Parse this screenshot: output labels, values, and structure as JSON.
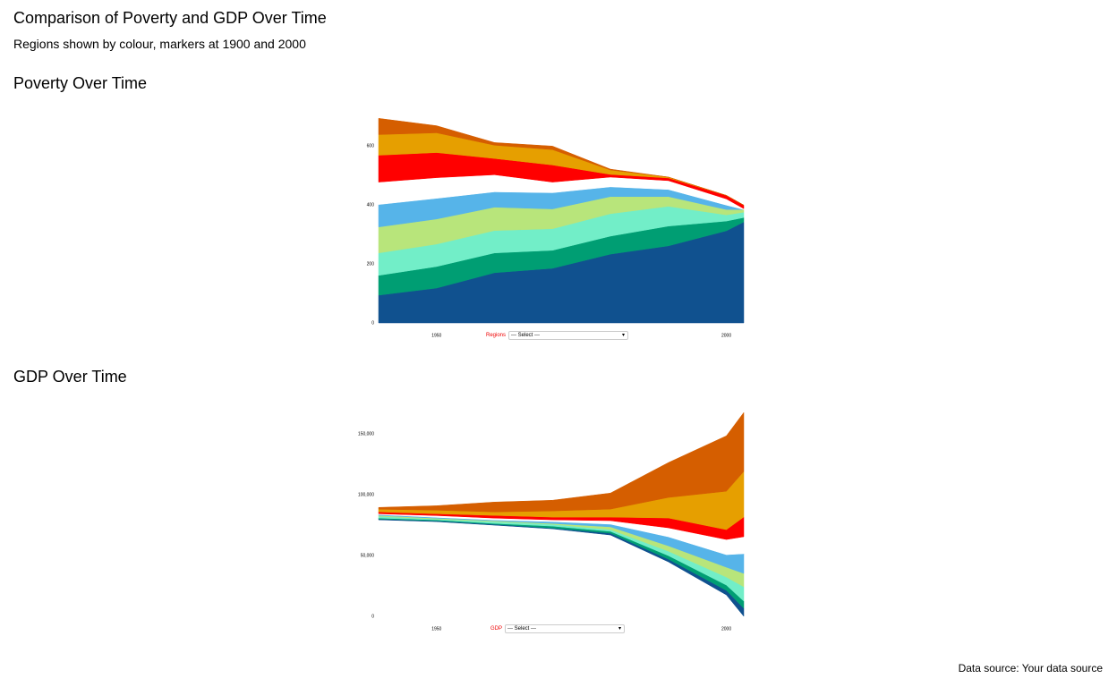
{
  "title": "Comparison of Poverty and GDP Over Time",
  "subtitle": "Regions shown by colour, markers at 1900 and 2000",
  "source": "Data source: Your data source",
  "chart_data": [
    {
      "type": "area",
      "title": "Poverty Over Time",
      "stacked": true,
      "select_label": "Regions",
      "select_placeholder": "--- Select ---",
      "x": [
        1940,
        1950,
        1960,
        1970,
        1980,
        1990,
        2000,
        2003
      ],
      "xlim": [
        1940,
        2003
      ],
      "xticks": [
        1950,
        2000
      ],
      "ylim": [
        0,
        700
      ],
      "yticks": [
        0,
        200,
        400,
        600
      ],
      "series": [
        {
          "color": "#10518f",
          "values": [
            94,
            118,
            170,
            185,
            233,
            261,
            312,
            342
          ]
        },
        {
          "color": "#009e73",
          "values": [
            67,
            73,
            67,
            61,
            61,
            67,
            33,
            15
          ]
        },
        {
          "color": "#72eec8",
          "values": [
            76,
            76,
            76,
            73,
            76,
            67,
            21,
            18
          ]
        },
        {
          "color": "#b8e57b",
          "values": [
            88,
            85,
            79,
            67,
            58,
            33,
            18,
            9
          ]
        },
        {
          "color": "#56b4e9",
          "values": [
            76,
            70,
            52,
            55,
            33,
            24,
            15,
            0
          ]
        },
        {
          "color": "#ffffff",
          "values": [
            76,
            70,
            58,
            36,
            33,
            30,
            21,
            3
          ]
        },
        {
          "color": "#ff0000",
          "values": [
            91,
            85,
            55,
            58,
            9,
            9,
            12,
            12
          ]
        },
        {
          "color": "#e69f00",
          "values": [
            70,
            67,
            45,
            52,
            15,
            3,
            0,
            0
          ]
        },
        {
          "color": "#d55e00",
          "values": [
            55,
            24,
            9,
            12,
            3,
            0,
            0,
            0
          ]
        }
      ]
    },
    {
      "type": "area",
      "title": "GDP Over Time",
      "stacked": true,
      "select_label": "GDP",
      "select_placeholder": "--- Select ---",
      "x": [
        1940,
        1950,
        1960,
        1970,
        1980,
        1990,
        2000,
        2003
      ],
      "xlim": [
        1940,
        2003
      ],
      "xticks": [
        1950,
        2000
      ],
      "ylim": [
        0,
        170000
      ],
      "yticks": [
        0,
        {
          "value": 50000,
          "label": "50,000"
        },
        {
          "value": 100000,
          "label": "100,000"
        },
        {
          "value": 150000,
          "label": "150,000"
        }
      ],
      "series": [
        {
          "color": "#ffffff",
          "values": [
            79400,
            77900,
            75000,
            72000,
            66900,
            44800,
            17600,
            0
          ]
        },
        {
          "color": "#10518f",
          "values": [
            700,
            700,
            700,
            700,
            1500,
            2200,
            3700,
            6600
          ]
        },
        {
          "color": "#009e73",
          "values": [
            700,
            700,
            700,
            1500,
            1500,
            2900,
            4400,
            5900
          ]
        },
        {
          "color": "#72eec8",
          "values": [
            1500,
            700,
            1500,
            1500,
            1500,
            3700,
            6600,
            11800
          ]
        },
        {
          "color": "#b8e57b",
          "values": [
            700,
            700,
            700,
            700,
            2200,
            4400,
            8100,
            11000
          ]
        },
        {
          "color": "#56b4e9",
          "values": [
            700,
            700,
            700,
            1500,
            2200,
            7400,
            10300,
            16200
          ]
        },
        {
          "color": "#ffffff",
          "values": [
            700,
            1500,
            1500,
            1500,
            2900,
            7400,
            12500,
            14000
          ]
        },
        {
          "color": "#ff0000",
          "values": [
            1500,
            1500,
            2200,
            2200,
            2900,
            8100,
            8100,
            16200
          ]
        },
        {
          "color": "#e69f00",
          "values": [
            2200,
            2900,
            2900,
            5100,
            6600,
            16900,
            31600,
            37500
          ]
        },
        {
          "color": "#d55e00",
          "values": [
            1500,
            3700,
            8100,
            8800,
            13200,
            28700,
            45600,
            48500
          ]
        }
      ]
    }
  ]
}
